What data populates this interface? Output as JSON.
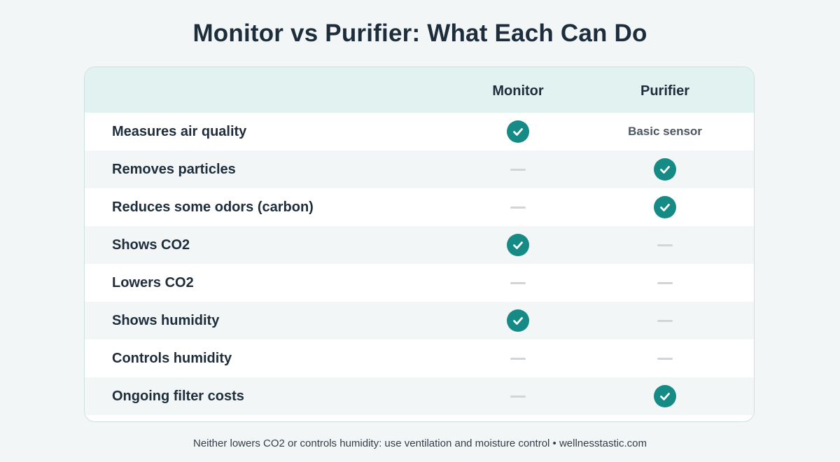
{
  "title": "Monitor vs Purifier: What Each Can Do",
  "columns": {
    "monitor": "Monitor",
    "purifier": "Purifier"
  },
  "rows": [
    {
      "label": "Measures air quality",
      "monitor": {
        "type": "check"
      },
      "purifier": {
        "type": "text",
        "text": "Basic sensor"
      }
    },
    {
      "label": "Removes particles",
      "monitor": {
        "type": "dash"
      },
      "purifier": {
        "type": "check"
      }
    },
    {
      "label": "Reduces some odors (carbon)",
      "monitor": {
        "type": "dash"
      },
      "purifier": {
        "type": "check"
      }
    },
    {
      "label": "Shows CO2",
      "monitor": {
        "type": "check"
      },
      "purifier": {
        "type": "dash"
      }
    },
    {
      "label": "Lowers CO2",
      "monitor": {
        "type": "dash"
      },
      "purifier": {
        "type": "dash"
      }
    },
    {
      "label": "Shows humidity",
      "monitor": {
        "type": "check"
      },
      "purifier": {
        "type": "dash"
      }
    },
    {
      "label": "Controls humidity",
      "monitor": {
        "type": "dash"
      },
      "purifier": {
        "type": "dash"
      }
    },
    {
      "label": "Ongoing filter costs",
      "monitor": {
        "type": "dash"
      },
      "purifier": {
        "type": "check"
      }
    }
  ],
  "footer": "Neither lowers CO2 or controls humidity: use ventilation and moisture control • wellnesstastic.com",
  "colors": {
    "check": "#168a84",
    "header_bg": "#e2f2f1",
    "alt_row_bg": "#f2f6f6",
    "dash": "#cfd5d9"
  }
}
